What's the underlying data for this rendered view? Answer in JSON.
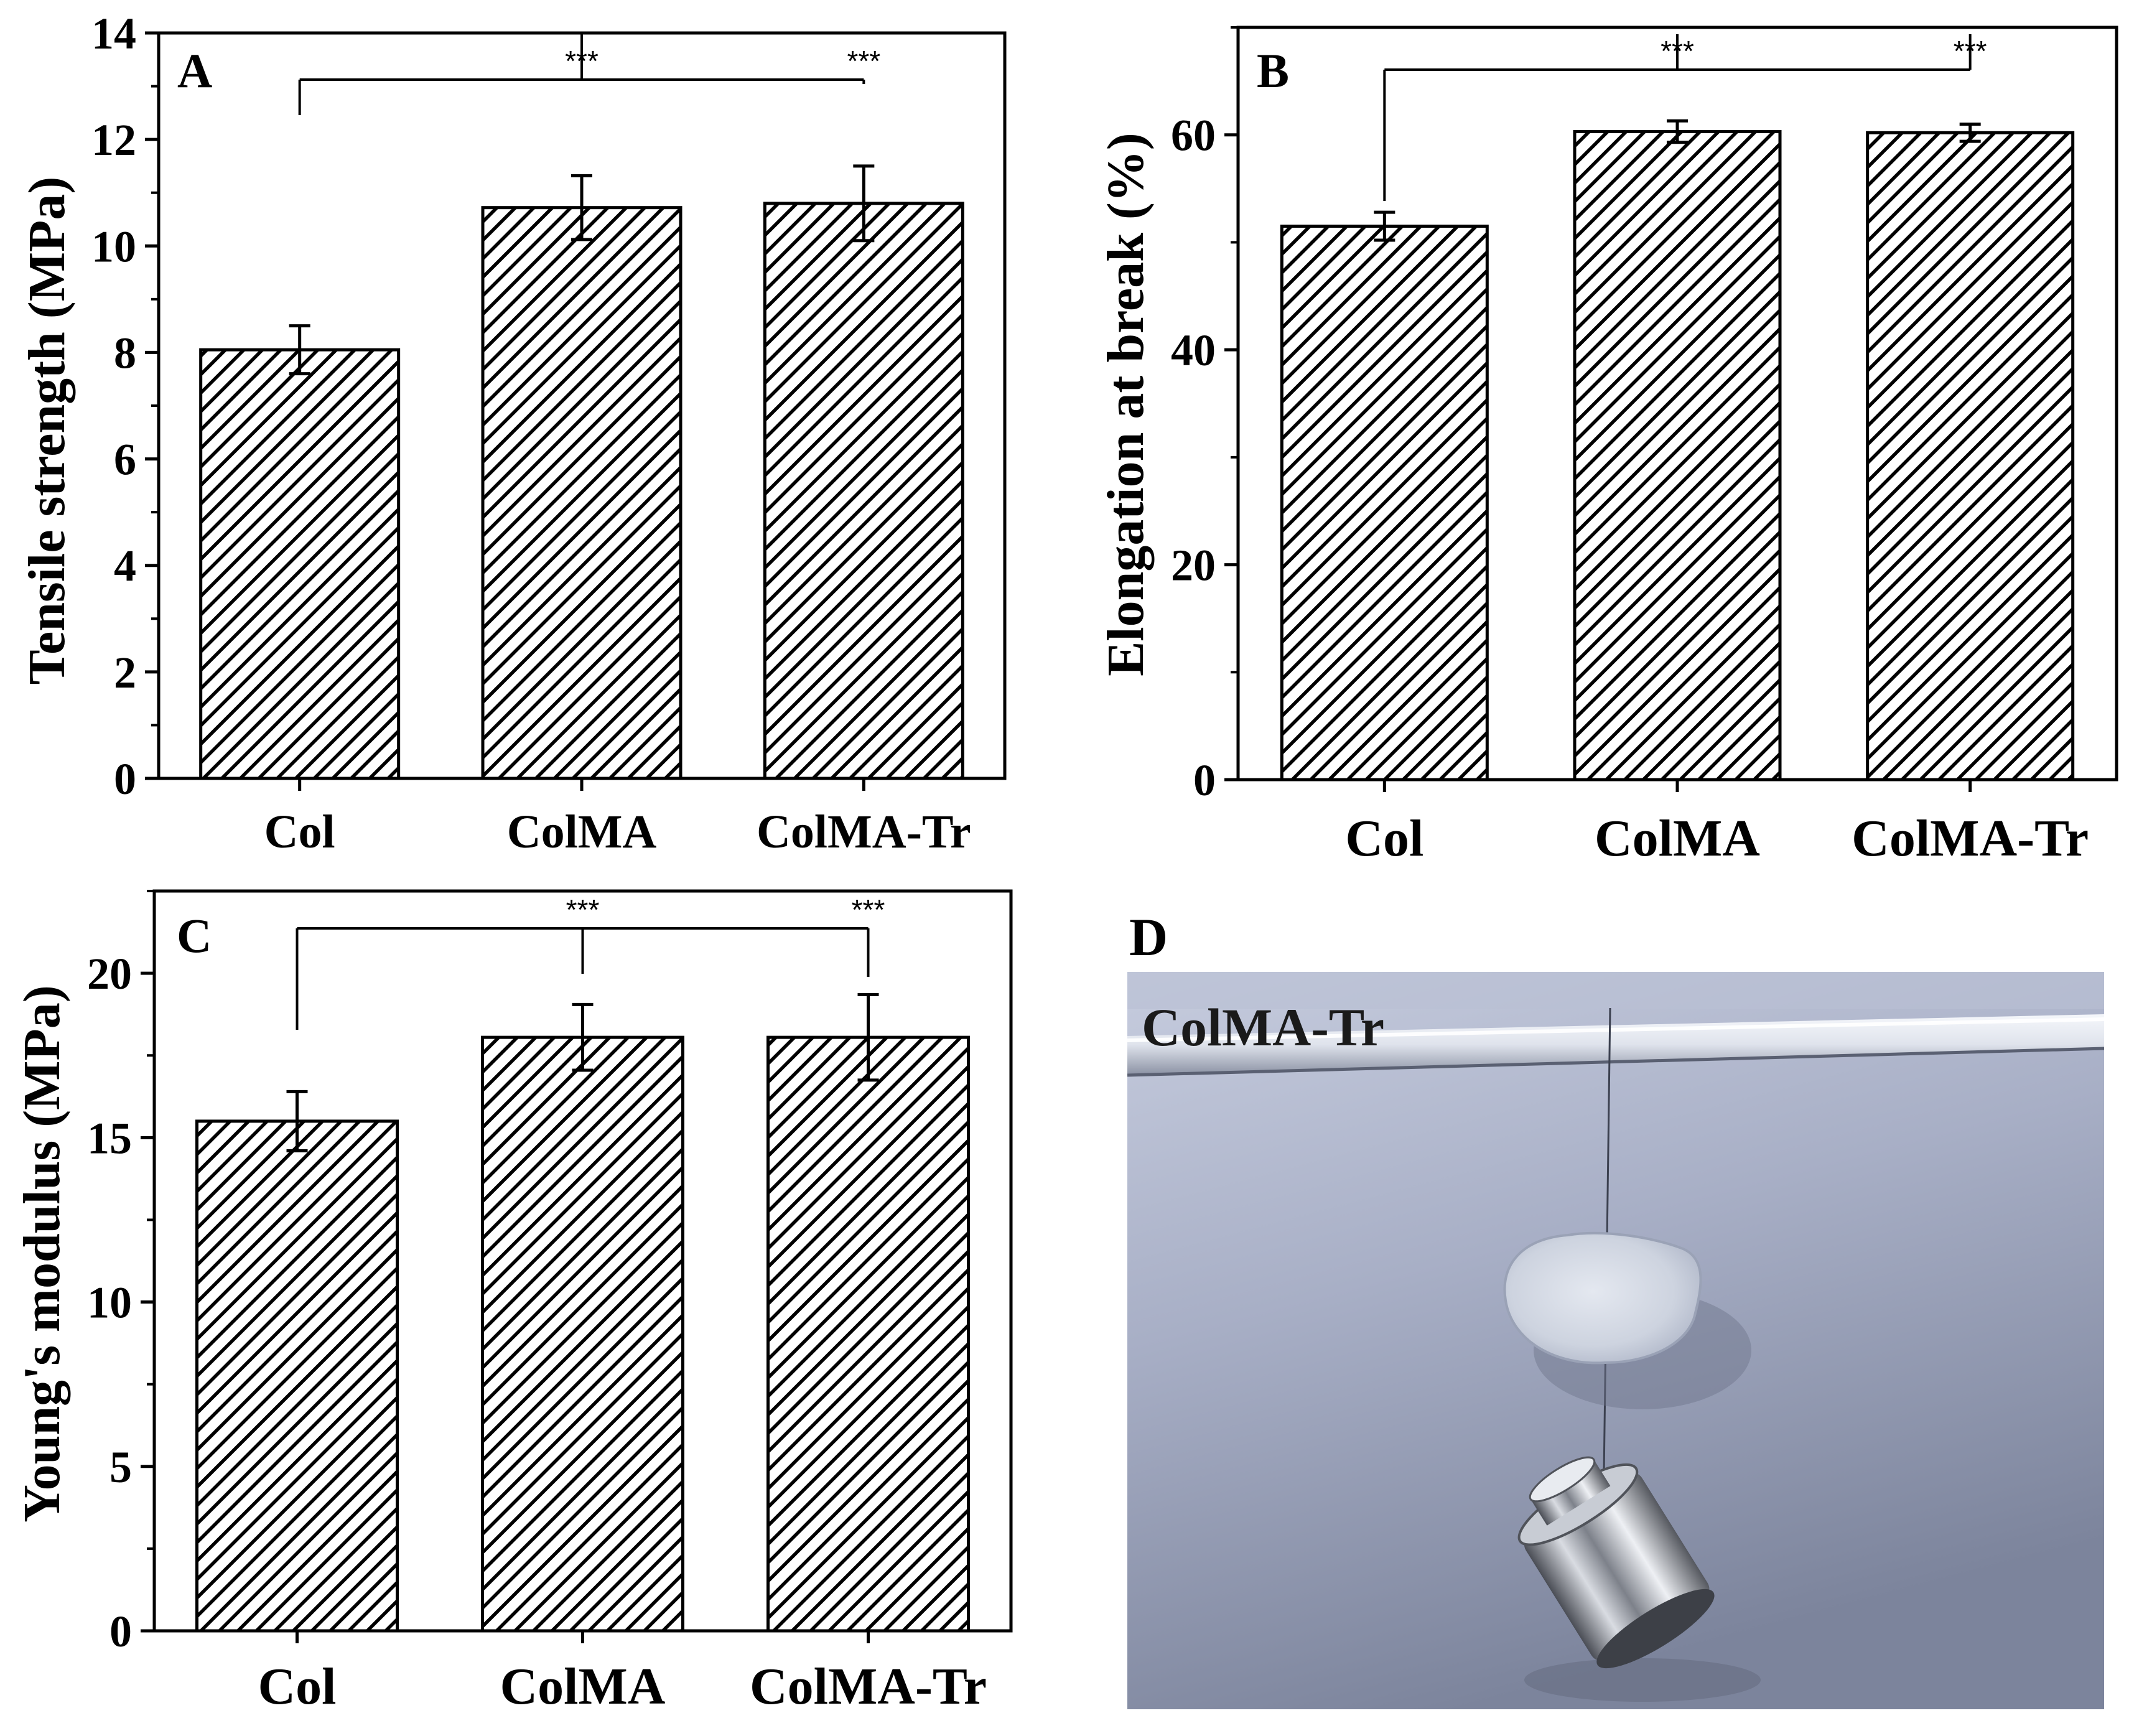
{
  "chart_data": [
    {
      "panel": "A",
      "type": "bar",
      "categories": [
        "Col",
        "ColMA",
        "ColMA-Tr"
      ],
      "values": [
        8.05,
        10.72,
        10.8
      ],
      "errors": [
        0.45,
        0.6,
        0.7
      ],
      "ylabel": "Tensile strength (MPa)",
      "xlabel": "",
      "ylim": [
        0,
        14
      ],
      "yticks": [
        0,
        2,
        4,
        6,
        8,
        10,
        12,
        14
      ],
      "yminor_step": 1,
      "tick_labels": [
        "0",
        "2",
        "4",
        "6",
        "8",
        "10",
        "12",
        "14"
      ],
      "significance": [
        {
          "from": "Col",
          "to": "ColMA",
          "label": "***"
        },
        {
          "from": "Col",
          "to": "ColMA-Tr",
          "label": "***"
        }
      ]
    },
    {
      "panel": "B",
      "type": "bar",
      "categories": [
        "Col",
        "ColMA",
        "ColMA-Tr"
      ],
      "values": [
        51.5,
        60.3,
        60.2
      ],
      "errors": [
        1.3,
        1.0,
        0.8
      ],
      "ylabel": "Elongation at break (%)",
      "xlabel": "",
      "ylim": [
        0,
        70
      ],
      "yticks": [
        0,
        20,
        40,
        60
      ],
      "yminor_step": 10,
      "tick_labels": [
        "0",
        "20",
        "40",
        "60"
      ],
      "significance": [
        {
          "from": "Col",
          "to": "ColMA",
          "label": "***"
        },
        {
          "from": "Col",
          "to": "ColMA-Tr",
          "label": "***"
        }
      ]
    },
    {
      "panel": "C",
      "type": "bar",
      "categories": [
        "Col",
        "ColMA",
        "ColMA-Tr"
      ],
      "values": [
        15.5,
        18.05,
        18.05
      ],
      "errors": [
        0.9,
        1.0,
        1.3
      ],
      "ylabel": "Young's modulus (MPa)",
      "xlabel": "",
      "ylim": [
        0,
        22.5
      ],
      "yticks": [
        0,
        5,
        10,
        15,
        20
      ],
      "yminor_step": 2.5,
      "tick_labels": [
        "0",
        "5",
        "10",
        "15",
        "20"
      ],
      "significance": [
        {
          "from": "Col",
          "to": "ColMA",
          "label": "***"
        },
        {
          "from": "Col",
          "to": "ColMA-Tr",
          "label": "***"
        }
      ]
    }
  ],
  "photo": {
    "panel": "D",
    "caption": "ColMA-Tr"
  },
  "colors": {
    "axis": "#000000",
    "bar_fill": "#ffffff",
    "hatch": "#000000",
    "photo_bg_top": "#c3c9dc",
    "photo_bg_bottom": "#7f879f"
  }
}
